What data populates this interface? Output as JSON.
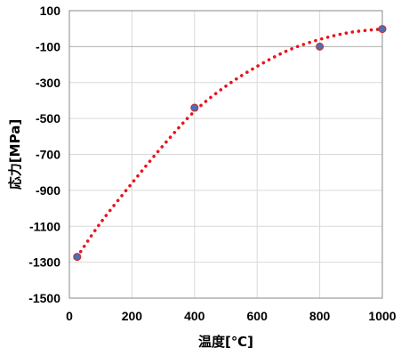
{
  "chart_data": {
    "type": "scatter",
    "title": "",
    "xlabel": "温度[℃]",
    "ylabel": "応力[MPa]",
    "xlim": [
      0,
      1000
    ],
    "ylim": [
      -1500,
      100
    ],
    "x_ticks": [
      "0",
      "200",
      "400",
      "600",
      "800",
      "1000"
    ],
    "y_ticks": [
      "100",
      "-100",
      "-300",
      "-500",
      "-700",
      "-900",
      "-1100",
      "-1300",
      "-1500"
    ],
    "grid": true,
    "legend": "none",
    "series": [
      {
        "marker": "circle",
        "color": "#4a6fb5",
        "points": [
          {
            "x": 25,
            "y": -1270
          },
          {
            "x": 400,
            "y": -440
          },
          {
            "x": 800,
            "y": -100
          },
          {
            "x": 1000,
            "y": -2
          }
        ]
      },
      {
        "type": "line",
        "line_style": "dotted",
        "color": "#e8141c",
        "points": [
          {
            "x": 25,
            "y": -1270
          },
          {
            "x": 100,
            "y": -1080
          },
          {
            "x": 200,
            "y": -860
          },
          {
            "x": 300,
            "y": -650
          },
          {
            "x": 400,
            "y": -460
          },
          {
            "x": 500,
            "y": -320
          },
          {
            "x": 600,
            "y": -210
          },
          {
            "x": 700,
            "y": -120
          },
          {
            "x": 800,
            "y": -60
          },
          {
            "x": 900,
            "y": -20
          },
          {
            "x": 1000,
            "y": -2
          }
        ]
      }
    ]
  }
}
